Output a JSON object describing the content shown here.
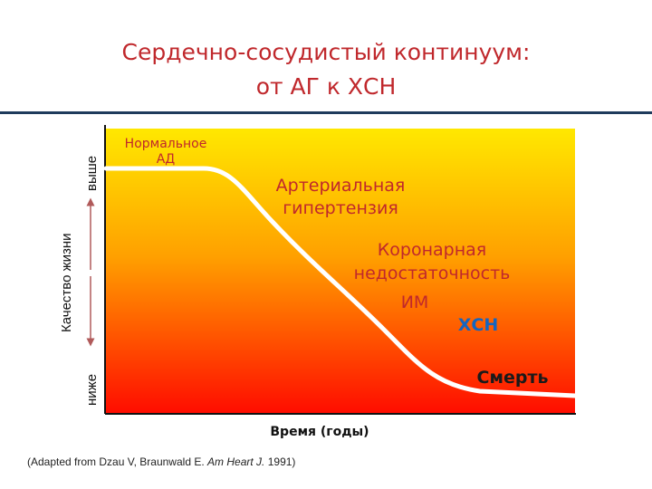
{
  "title": {
    "line1": "Сердечно-сосудистый континуум:",
    "line2": "от АГ к ХСН"
  },
  "y_axis": {
    "label": "Качество жизни",
    "top_label": "выше",
    "bottom_label": "ниже"
  },
  "x_axis": {
    "label": "Время (годы)"
  },
  "stages": {
    "normal_line1": "Нормальное",
    "normal_line2": "АД",
    "hypertension_line1": "Артериальная",
    "hypertension_line2": "гипертензия",
    "coronary_line1": "Коронарная",
    "coronary_line2": "недостаточность",
    "mi": "ИМ",
    "chf": "ХСН",
    "death": "Смерть"
  },
  "citation": {
    "prefix": "(Adapted from Dzau V, Braunwald E.",
    "journal": "Am Heart J.",
    "year": "1991)"
  },
  "colors": {
    "title": "#c0282c",
    "gradient_top": "#ffe800",
    "gradient_mid": "#ff8c00",
    "gradient_bottom": "#ff0d00",
    "curve": "#ffffff",
    "chf_label": "#1565c0"
  }
}
